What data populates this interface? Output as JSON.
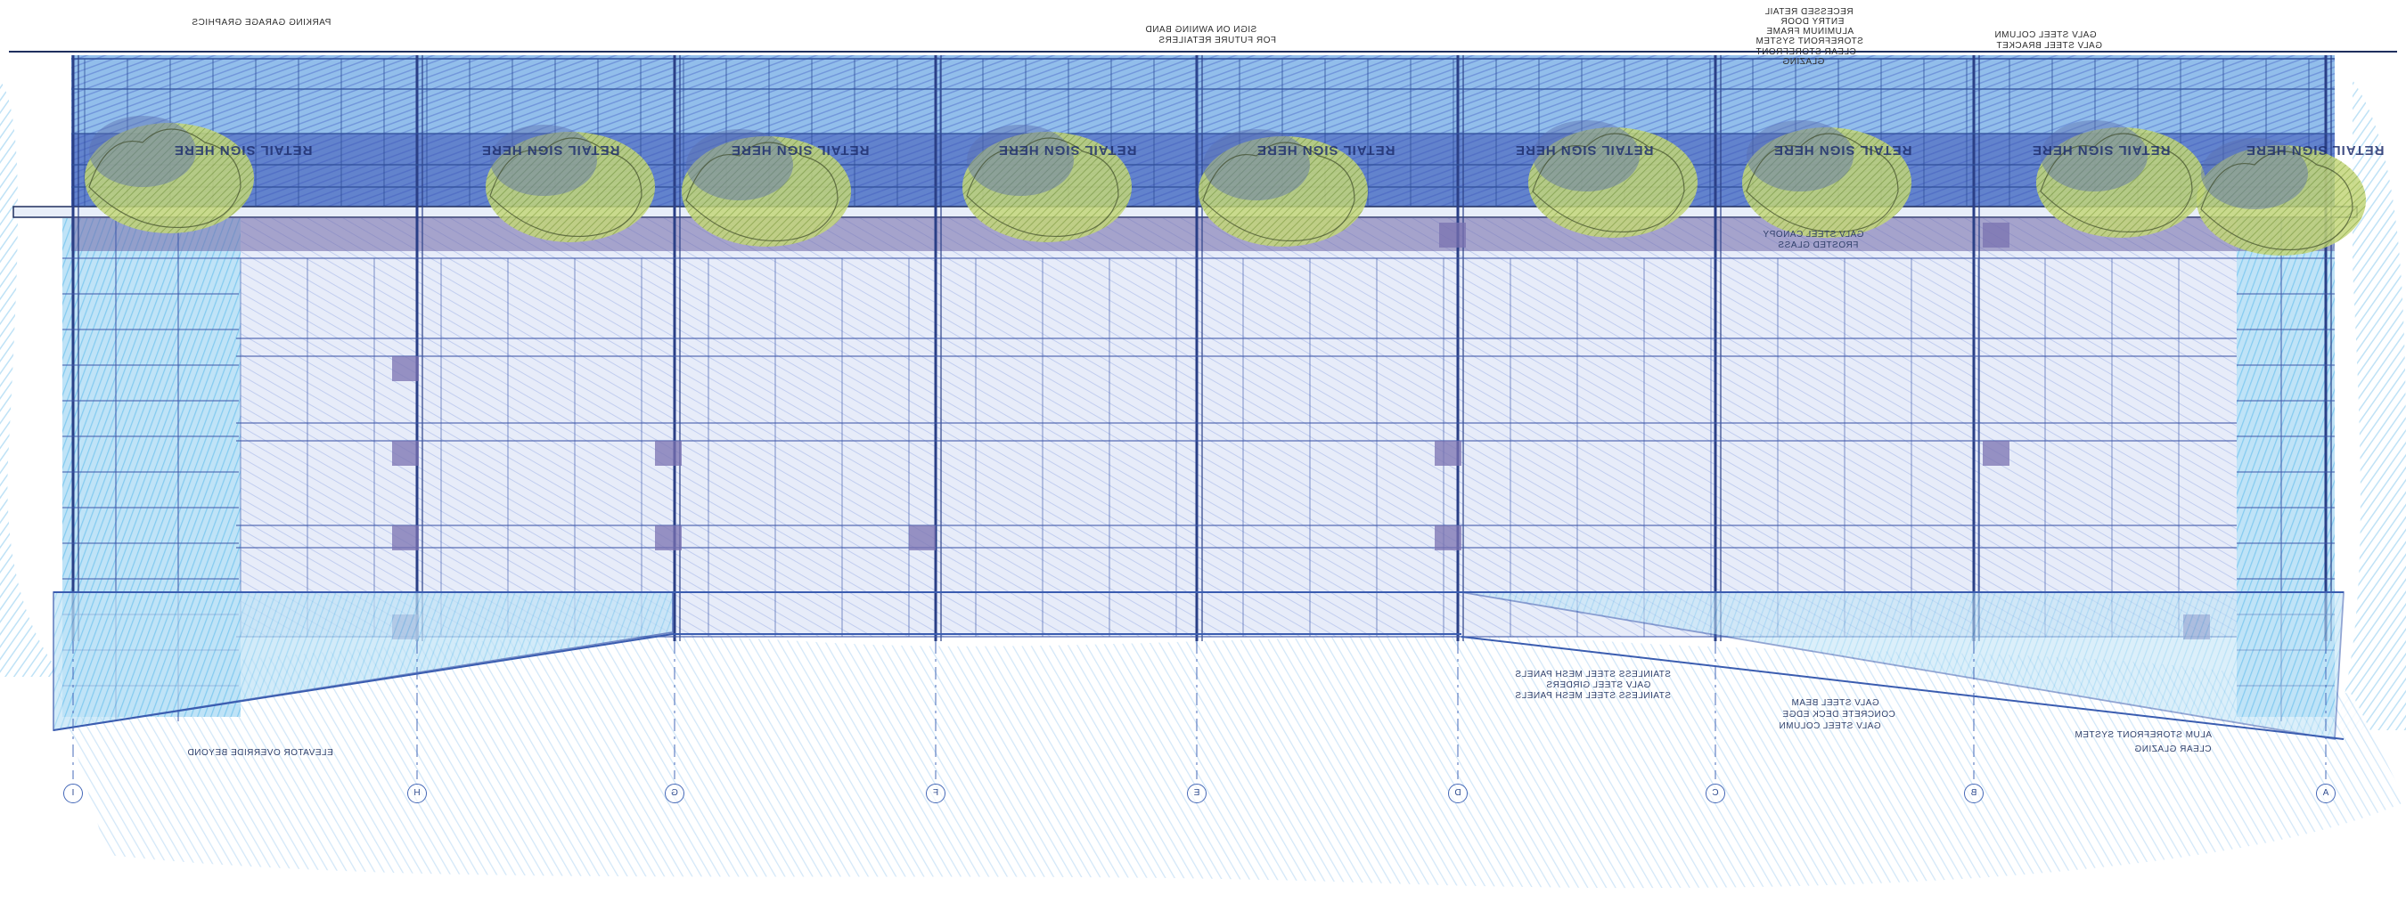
{
  "drawing": {
    "view": "storefront elevation (reversed)",
    "colors": {
      "sky": "#7ec4ec",
      "glass": "#c9d6f2",
      "glass_upper": "#4a74d0",
      "mullion": "#2f4f9a",
      "tree": "#8fae3a",
      "spandrel": "#7a72b0"
    }
  },
  "annotations": {
    "parking_garage_graphics": "PARKING GARAGE GRAPHICS",
    "sign_on_awning": "SIGN ON AWNING BAND",
    "for_future_retailers": "FOR FUTURE RETAILERS",
    "recessed_retail": "RECESSED RETAIL",
    "entry_door": "ENTRY DOOR",
    "aluminum_frame": "ALUMINUM FRAME",
    "storefront_system": "STOREFRONT SYSTEM",
    "clear_storefront": "CLEAR STOREFRONT",
    "glazing": "GLAZING",
    "galv_steel_column_top": "GALV STEEL COLUMN",
    "galv_steel_bracket": "GALV STEEL BRACKET",
    "galv_steel_canopy": "GALV STEEL CANOPY",
    "frosted_glass": "FROSTED GLASS",
    "stainless_mesh_1": "STAINLESS STEEL MESH PANELS",
    "galv_steel_girders": "GALV STEEL GIRDERS",
    "stainless_mesh_2": "STAINLESS STEEL MESH PANELS",
    "galv_steel_beam": "GALV STEEL BEAM",
    "concrete_deck_edge": "CONCRETE DECK EDGE",
    "galv_steel_column": "GALV STEEL COLUMN",
    "alum_storefront": "ALUM STOREFRONT SYSTEM",
    "clear_glazing": "CLEAR GLAZING",
    "elevator_overrides": "ELEVATOR OVERRIDE BEYOND"
  },
  "signs": [
    "RETAIL SIGN HERE",
    "RETAIL SIGN HERE",
    "RETAIL SIGN HERE",
    "RETAIL SIGN HERE",
    "RETAIL SIGN HERE",
    "RETAIL SIGN HERE",
    "RETAIL SIGN HERE",
    "RETAIL SIGN HERE",
    "RETAIL SIGN HERE"
  ],
  "grid_lines": [
    "I",
    "H",
    "G",
    "F",
    "E",
    "D",
    "C",
    "B",
    "A"
  ]
}
